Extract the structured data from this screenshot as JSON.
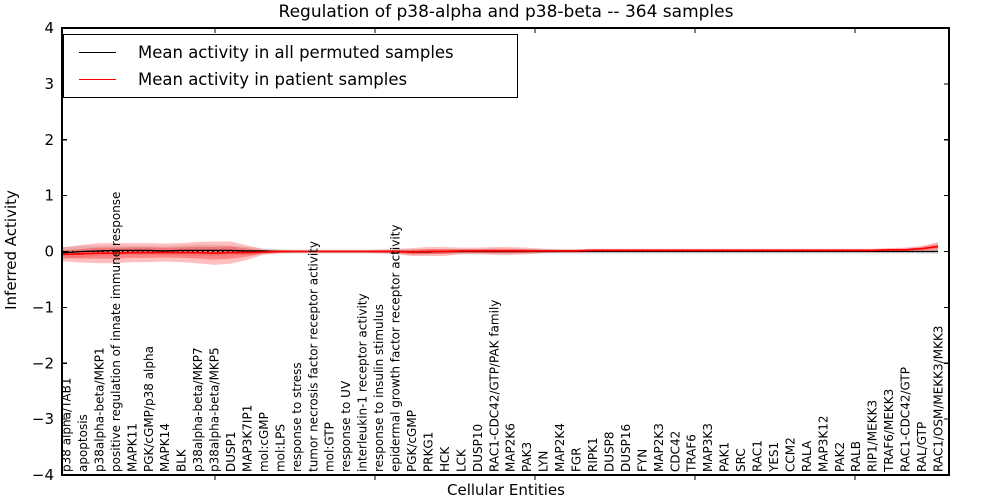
{
  "chart_data": {
    "type": "line",
    "title": "Regulation of p38-alpha and p38-beta -- 364 samples",
    "xlabel": "Cellular Entities",
    "ylabel": "Inferred Activity",
    "ylim": [
      -4,
      4
    ],
    "yticks": [
      4,
      3,
      2,
      1,
      0,
      -1,
      -2,
      -3,
      -4
    ],
    "yticklabels": [
      "4",
      "3",
      "2",
      "1",
      "0",
      "−1",
      "−2",
      "−3",
      "−4"
    ],
    "grid": false,
    "legend_position": "upper left",
    "zero_line": {
      "y": 0,
      "style": "dotted",
      "color": "#000000"
    },
    "categories": [
      "p38 alpha/TAB1",
      "apoptosis",
      "p38alpha-beta/MKP1",
      "positive regulation of innate immune response",
      "MAPK11",
      "PGK/cGMP/p38 alpha",
      "MAPK14",
      "BLK",
      "p38alpha-beta/MKP7",
      "p38alpha-beta/MKP5",
      "DUSP1",
      "MAP3K7IP1",
      "mol:cGMP",
      "mol:LPS",
      "response to stress",
      "tumor necrosis factor receptor activity",
      "mol:GTP",
      "response to UV",
      "interleukin-1 receptor activity",
      "response to insulin stimulus",
      "epidermal growth factor receptor activity",
      "PGK/cGMP",
      "PRKG1",
      "HCK",
      "LCK",
      "DUSP10",
      "RAC1-CDC42/GTP/PAK family",
      "MAP2K6",
      "PAK3",
      "LYN",
      "MAP2K4",
      "FGR",
      "RIPK1",
      "DUSP8",
      "DUSP16",
      "FYN",
      "MAP2K3",
      "CDC42",
      "TRAF6",
      "MAP3K3",
      "PAK1",
      "SRC",
      "RAC1",
      "YES1",
      "CCM2",
      "RALA",
      "MAP3K12",
      "PAK2",
      "RALB",
      "RIP1/MEKK3",
      "TRAF6/MEKK3",
      "RAC1-CDC42/GTP",
      "RAL/GTP",
      "RAC1/OSM/MEKK3/MKK3"
    ],
    "series": [
      {
        "name": "Mean activity in all permuted samples",
        "color": "#000000",
        "band_color": "#888888",
        "band_opacity": 0.22,
        "values": [
          -0.02,
          0,
          0.01,
          0.02,
          0.02,
          0.02,
          0.01,
          0.02,
          0.02,
          0.02,
          0.02,
          0.01,
          0.01,
          0,
          0,
          0,
          0,
          0,
          0,
          0,
          0,
          -0.01,
          -0.01,
          0,
          0,
          0,
          0,
          0,
          0,
          0,
          0,
          0,
          0,
          0,
          0,
          0,
          0,
          0,
          0,
          0,
          0,
          0,
          0,
          0,
          0,
          0,
          0,
          0,
          0,
          0,
          0,
          0,
          0,
          0
        ],
        "band_halfwidth": [
          0.1,
          0.1,
          0.09,
          0.09,
          0.08,
          0.08,
          0.08,
          0.09,
          0.1,
          0.1,
          0.09,
          0.07,
          0.05,
          0.04,
          0.04,
          0.04,
          0.04,
          0.04,
          0.04,
          0.04,
          0.05,
          0.05,
          0.05,
          0.04,
          0.04,
          0.04,
          0.04,
          0.04,
          0.04,
          0.04,
          0.04,
          0.04,
          0.04,
          0.04,
          0.04,
          0.04,
          0.04,
          0.04,
          0.04,
          0.04,
          0.04,
          0.04,
          0.04,
          0.04,
          0.04,
          0.04,
          0.04,
          0.04,
          0.04,
          0.04,
          0.04,
          0.04,
          0.04,
          0.05
        ]
      },
      {
        "name": "Mean activity in patient samples",
        "color": "#ff0000",
        "band_color": "#ff0000",
        "band_opacity": 0.25,
        "values": [
          -0.05,
          -0.04,
          -0.03,
          -0.03,
          -0.02,
          -0.02,
          -0.02,
          -0.02,
          -0.02,
          -0.03,
          -0.02,
          -0.02,
          -0.01,
          0,
          0,
          0,
          0,
          0,
          0,
          0,
          0,
          -0.01,
          0,
          0,
          0.01,
          0.01,
          0.01,
          0.01,
          0.01,
          0.01,
          0.01,
          0.01,
          0.02,
          0.02,
          0.02,
          0.02,
          0.02,
          0.02,
          0.02,
          0.02,
          0.02,
          0.02,
          0.02,
          0.02,
          0.02,
          0.02,
          0.02,
          0.02,
          0.02,
          0.02,
          0.03,
          0.03,
          0.05,
          0.09
        ],
        "band_halfwidth": [
          0.13,
          0.16,
          0.18,
          0.18,
          0.17,
          0.17,
          0.16,
          0.17,
          0.19,
          0.21,
          0.2,
          0.13,
          0.05,
          0.03,
          0.02,
          0.02,
          0.02,
          0.02,
          0.02,
          0.03,
          0.04,
          0.07,
          0.08,
          0.08,
          0.06,
          0.06,
          0.07,
          0.07,
          0.06,
          0.04,
          0.03,
          0.03,
          0.03,
          0.03,
          0.03,
          0.03,
          0.03,
          0.03,
          0.03,
          0.03,
          0.03,
          0.03,
          0.03,
          0.03,
          0.03,
          0.03,
          0.03,
          0.03,
          0.03,
          0.03,
          0.03,
          0.04,
          0.05,
          0.08
        ]
      }
    ]
  }
}
